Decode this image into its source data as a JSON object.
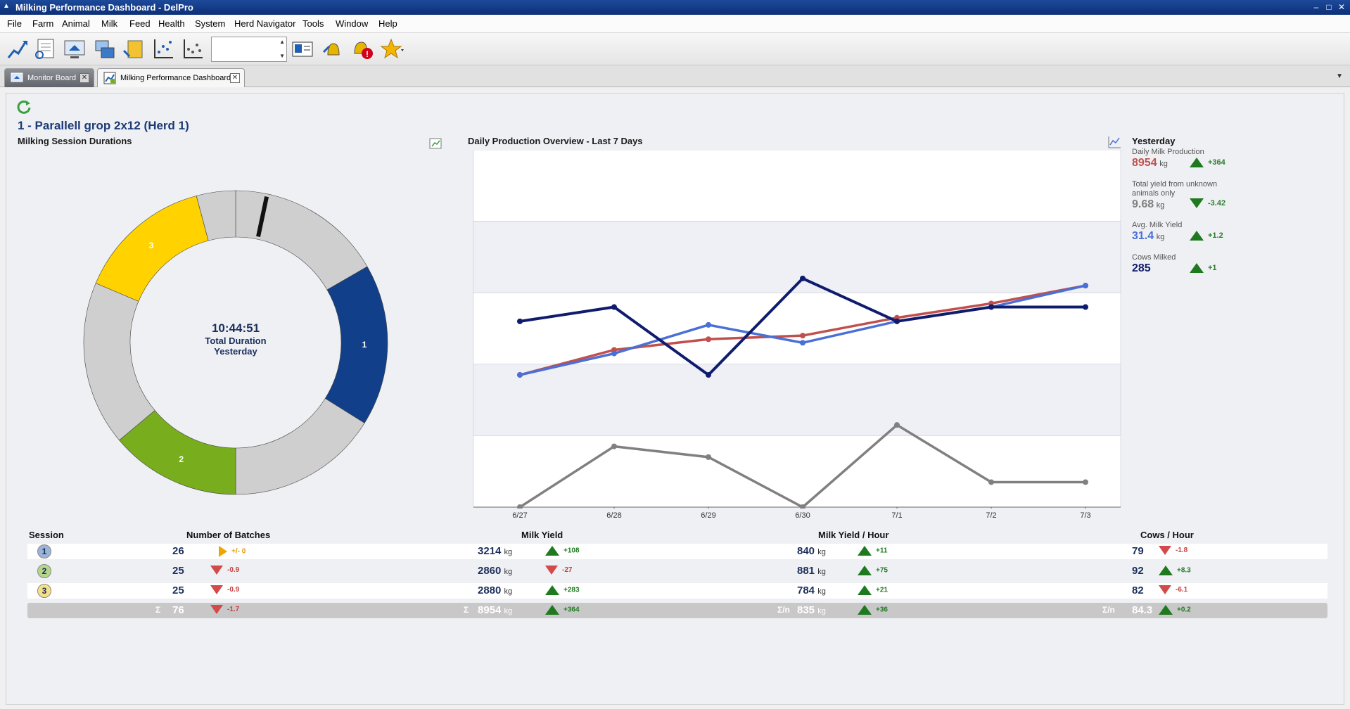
{
  "window": {
    "title": "Milking Performance Dashboard - DelPro",
    "app_icon": "delpro-icon"
  },
  "menu": [
    "File",
    "Farm",
    "Animal",
    "Milk",
    "Feed",
    "Health",
    "System",
    "Herd Navigator",
    "Tools",
    "Window",
    "Help"
  ],
  "tabs": [
    {
      "label": "Monitor Board",
      "icon": "home-icon",
      "active": false
    },
    {
      "label": "Milking Performance Dashboard",
      "icon": "dashboard-icon",
      "active": true
    }
  ],
  "dashboard": {
    "group_title": "1 - Parallell grop 2x12 (Herd 1)",
    "donut_title": "Milking Session Durations",
    "total_time": "10:44:51",
    "total_label_1": "Total Duration",
    "total_label_2": "Yesterday",
    "segment_labels": [
      "1",
      "2",
      "3"
    ],
    "chart_title": "Daily Production Overview - Last 7 Days"
  },
  "kpi": {
    "heading": "Yesterday",
    "items": [
      {
        "label": "Daily Milk Production",
        "value": "8954",
        "unit": "kg",
        "delta": "+364",
        "color": "#c0504d",
        "dir": "up"
      },
      {
        "label": "Total yield from unknown animals only",
        "value": "9.68",
        "unit": "kg",
        "delta": "-3.42",
        "color": "#808080",
        "dir": "down"
      },
      {
        "label": "Avg. Milk Yield",
        "value": "31.4",
        "unit": "kg",
        "delta": "+1.2",
        "color": "#4a6fd6",
        "dir": "up"
      },
      {
        "label": "Cows Milked",
        "value": "285",
        "unit": "",
        "delta": "+1",
        "color": "#0f1c6e",
        "dir": "up"
      }
    ]
  },
  "table": {
    "headers": {
      "session": "Session",
      "batches": "Number of Batches",
      "milk_yield": "Milk Yield",
      "milk_yield_hour": "Milk Yield / Hour",
      "cows_hour": "Cows / Hour"
    },
    "unit": "kg",
    "sigma": "Σ",
    "sigma_n": "Σ/n",
    "rows": [
      {
        "session": "1",
        "badge_color": "#9bb3d6",
        "batches": "26",
        "batches_delta": "+/- 0",
        "batches_dir": "neutral",
        "yield": "3214",
        "yield_delta": "+108",
        "yield_dir": "up",
        "yph": "840",
        "yph_delta": "+11",
        "yph_dir": "up",
        "cph": "79",
        "cph_delta": "-1.8",
        "cph_dir": "down"
      },
      {
        "session": "2",
        "badge_color": "#b6d58c",
        "batches": "25",
        "batches_delta": "-0.9",
        "batches_dir": "down",
        "yield": "2860",
        "yield_delta": "-27",
        "yield_dir": "down",
        "yph": "881",
        "yph_delta": "+75",
        "yph_dir": "up",
        "cph": "92",
        "cph_delta": "+8.3",
        "cph_dir": "up"
      },
      {
        "session": "3",
        "badge_color": "#f5e089",
        "batches": "25",
        "batches_delta": "-0.9",
        "batches_dir": "down",
        "yield": "2880",
        "yield_delta": "+283",
        "yield_dir": "up",
        "yph": "784",
        "yph_delta": "+21",
        "yph_dir": "up",
        "cph": "82",
        "cph_delta": "-6.1",
        "cph_dir": "down"
      }
    ],
    "total": {
      "batches": "76",
      "batches_delta": "-1.7",
      "yield": "8954",
      "yield_delta": "+364",
      "yph": "835",
      "yph_delta": "+36",
      "cph": "84.3",
      "cph_delta": "+0.2"
    }
  },
  "chart_data": [
    {
      "type": "pie",
      "title": "Milking Session Durations",
      "slices": [
        {
          "label": "",
          "start_deg": 0,
          "end_deg": 60,
          "color": "#cfcfcf"
        },
        {
          "label": "1",
          "start_deg": 60,
          "end_deg": 122,
          "color": "#123f8a"
        },
        {
          "label": "",
          "start_deg": 122,
          "end_deg": 180,
          "color": "#cfcfcf"
        },
        {
          "label": "2",
          "start_deg": 180,
          "end_deg": 230,
          "color": "#78ae1e"
        },
        {
          "label": "",
          "start_deg": 230,
          "end_deg": 293,
          "color": "#cfcfcf"
        },
        {
          "label": "3",
          "start_deg": 293,
          "end_deg": 345,
          "color": "#ffd200"
        },
        {
          "label": "",
          "start_deg": 345,
          "end_deg": 360,
          "color": "#cfcfcf"
        }
      ],
      "marker_deg": 12
    },
    {
      "type": "line",
      "title": "Daily Production Overview - Last 7 Days",
      "categories": [
        "6/27",
        "6/28",
        "6/29",
        "6/30",
        "7/1",
        "7/2",
        "7/3"
      ],
      "ylim": [
        0,
        100
      ],
      "series": [
        {
          "name": "Daily Milk Production",
          "color": "#c0504d",
          "values": [
            37,
            44,
            47,
            48,
            53,
            57,
            62
          ]
        },
        {
          "name": "Total yield from unknown animals only",
          "color": "#808080",
          "values": [
            0,
            17,
            14,
            0,
            23,
            7,
            7
          ]
        },
        {
          "name": "Avg. Milk Yield",
          "color": "#4a6fd6",
          "values": [
            37,
            43,
            51,
            46,
            52,
            56,
            62
          ]
        },
        {
          "name": "Cows Milked",
          "color": "#0f1c6e",
          "values": [
            52,
            56,
            37,
            64,
            52,
            56,
            56
          ]
        }
      ]
    }
  ]
}
